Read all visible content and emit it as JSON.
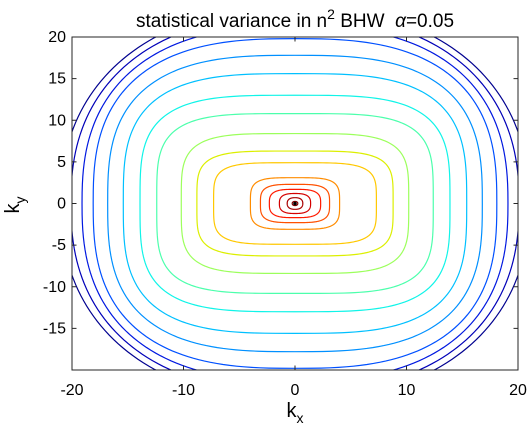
{
  "chart_data": {
    "type": "contour",
    "title_main": "statistical variance in n",
    "title_exp": "2",
    "title_rest": " BHW  ",
    "title_greek": "α",
    "title_value": "=0.05",
    "xlabel_base": "k",
    "xlabel_sub": "x",
    "ylabel_base": "k",
    "ylabel_sub": "y",
    "xlim": [
      -20,
      20
    ],
    "ylim": [
      -20,
      20
    ],
    "xticks": [
      "-20",
      "-10",
      "0",
      "10",
      "20"
    ],
    "yticks": [
      "20",
      "15",
      "10",
      "5",
      "0",
      "-5",
      "-10",
      "-15"
    ],
    "colormap": "jet",
    "contours": [
      {
        "rx": 0.25,
        "ry": 0.25,
        "n": 2.2,
        "color": "#7f0000"
      },
      {
        "rx": 0.7,
        "ry": 0.7,
        "n": 2.4,
        "color": "#a80000"
      },
      {
        "rx": 1.4,
        "ry": 1.2,
        "n": 2.8,
        "color": "#d40000"
      },
      {
        "rx": 2.3,
        "ry": 1.7,
        "n": 3.2,
        "color": "#ff1a00"
      },
      {
        "rx": 3.1,
        "ry": 2.3,
        "n": 3.6,
        "color": "#ff5000"
      },
      {
        "rx": 4.0,
        "ry": 3.1,
        "n": 4.0,
        "color": "#ff8c00"
      },
      {
        "rx": 7.3,
        "ry": 4.9,
        "n": 4.4,
        "color": "#ffc800"
      },
      {
        "rx": 8.8,
        "ry": 6.3,
        "n": 4.4,
        "color": "#dcef00"
      },
      {
        "rx": 10.2,
        "ry": 8.4,
        "n": 4.2,
        "color": "#9cff5c"
      },
      {
        "rx": 12.4,
        "ry": 10.8,
        "n": 4.0,
        "color": "#4cffac"
      },
      {
        "rx": 13.9,
        "ry": 13.0,
        "n": 3.6,
        "color": "#10f4e8"
      },
      {
        "rx": 15.4,
        "ry": 15.6,
        "n": 3.2,
        "color": "#00c0ff"
      },
      {
        "rx": 16.8,
        "ry": 17.8,
        "n": 2.9,
        "color": "#0090ff"
      },
      {
        "rx": 18.1,
        "ry": 19.8,
        "n": 2.7,
        "color": "#0050ff"
      },
      {
        "rx": 19.1,
        "ry": 21.3,
        "n": 2.5,
        "color": "#0018e0"
      },
      {
        "rx": 20.1,
        "ry": 22.6,
        "n": 2.35,
        "color": "#0000b8"
      },
      {
        "rx": 21.0,
        "ry": 23.6,
        "n": 2.25,
        "color": "#00008f"
      }
    ],
    "center_marker": {
      "x": 0,
      "y": 0,
      "color": "#000000"
    }
  }
}
